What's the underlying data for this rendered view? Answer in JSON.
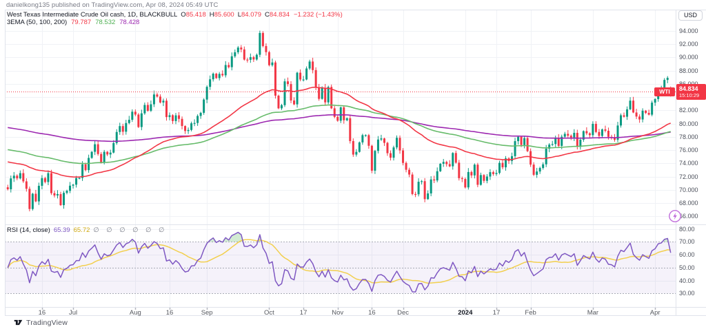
{
  "header": {
    "publish_line": "danielkong135 published on TradingView.com, Apr 08, 2024 05:49 UTC"
  },
  "footer": {
    "brand": "TradingView"
  },
  "icons": {
    "boost_icon": "lightning-bolt-in-circle",
    "brand_icon": "tradingview-logo-mark"
  },
  "colors": {
    "up": "#089981",
    "down": "#f23645",
    "ema50": "#f23645",
    "ema100": "#66bb6a",
    "ema200": "#9c27b0",
    "rsi_line": "#7e57c2",
    "rsi_ma": "#f2cf4d",
    "rsi_band_fill": "rgba(126,87,194,0.08)",
    "overbought_fill": "rgba(76,175,80,0.25)",
    "grid": "#f0f2f6",
    "dashed_level": "#a7aab4",
    "frame": "#e0e3eb",
    "last_price": "#f23645"
  },
  "main_legend": {
    "title": "West Texas Intermediate Crude Oil cash, 1D, BLACKBULL",
    "ohlc": {
      "o_label": "O",
      "o": "85.418",
      "h_label": "H",
      "h": "85.600",
      "l_label": "L",
      "l": "84.079",
      "c_label": "C",
      "c": "84.834",
      "change": "−1.232 (−1.43%)"
    },
    "ema_label": "3EMA (50, 100, 200)",
    "ema1": "79.787",
    "ema2": "78.532",
    "ema3": "78.428"
  },
  "rsi_legend": {
    "title": "RSI (14, close)",
    "value": "65.39",
    "ma_value": "65.72",
    "empties": "∅ ∅ ∅ ∅ ∅ ∅"
  },
  "price_scale": {
    "currency_button": "USD",
    "tag": "WTI",
    "last_price": "84.834",
    "countdown": "15:10:29"
  },
  "chart_data": {
    "type": "candlestick",
    "title": "West Texas Intermediate Crude Oil cash",
    "interval": "1D",
    "exchange": "BLACKBULL",
    "legend_last": {
      "o": 85.418,
      "h": 85.6,
      "l": 84.079,
      "c": 84.834,
      "change": -1.232,
      "change_pct": -1.43
    },
    "ylim": [
      64.8,
      97.2
    ],
    "price_axis_ticks": [
      94,
      92,
      90,
      88,
      86,
      84,
      82,
      80,
      78,
      76,
      74,
      72,
      70,
      68,
      66
    ],
    "closes": [
      70.1,
      71.74,
      72.15,
      71.74,
      72.53,
      71.29,
      70.17,
      67.12,
      69.42,
      68.27,
      70.62,
      71.78,
      71.19,
      72.53,
      69.51,
      69.16,
      69.37,
      67.7,
      69.56,
      69.86,
      70.64,
      70.79,
      71.79,
      71.8,
      73.86,
      72.99,
      74.83,
      75.75,
      76.89,
      75.42,
      74.15,
      75.75,
      75.35,
      75.63,
      77.07,
      78.74,
      79.63,
      78.78,
      80.09,
      80.58,
      81.8,
      81.37,
      79.49,
      81.55,
      82.82,
      81.94,
      82.92,
      84.4,
      84.08,
      83.19,
      83.46,
      80.99,
      81.27,
      80.39,
      81.25,
      80.72,
      79.64,
      78.89,
      79.05,
      80.05,
      80.1,
      81.16,
      81.63,
      83.63,
      85.55,
      86.69,
      87.54,
      86.87,
      87.51,
      87.29,
      88.84,
      88.52,
      90.16,
      90.77,
      91.48,
      91.2,
      89.66,
      89.63,
      90.03,
      89.68,
      90.39,
      93.68,
      91.71,
      90.79,
      88.82,
      89.23,
      84.22,
      82.31,
      82.79,
      86.38,
      85.97,
      83.49,
      82.91,
      87.69,
      86.66,
      86.66,
      88.32,
      89.37,
      88.08,
      85.49,
      83.74,
      85.39,
      83.21,
      85.54,
      82.31,
      81.02,
      80.44,
      82.46,
      80.51,
      80.82,
      77.37,
      75.33,
      75.74,
      77.17,
      78.26,
      78.26,
      76.66,
      72.9,
      75.89,
      77.6,
      77.77,
      77.1,
      75.54,
      74.86,
      76.41,
      77.86,
      75.96,
      74.07,
      73.04,
      72.32,
      69.38,
      69.34,
      71.23,
      71.32,
      68.61,
      69.47,
      71.58,
      71.43,
      72.82,
      73.94,
      74.22,
      73.89,
      73.56,
      75.57,
      74.11,
      71.77,
      71.65,
      70.38,
      72.7,
      72.19,
      73.81,
      70.77,
      72.24,
      71.37,
      72.02,
      72.68,
      72.4,
      72.56,
      74.08,
      73.41,
      74.76,
      74.37,
      75.09,
      77.36,
      78.01,
      76.78,
      77.82,
      75.85,
      73.82,
      72.28,
      72.78,
      73.31,
      73.86,
      76.22,
      76.84,
      76.92,
      77.87,
      76.64,
      78.03,
      78.46,
      78.18,
      77.91,
      78.61,
      76.49,
      77.58,
      78.87,
      78.54,
      78.26,
      79.97,
      78.74,
      78.15,
      79.13,
      78.93,
      78.01,
      77.93,
      77.56,
      79.72,
      81.26,
      81.04,
      82.16,
      83.47,
      81.68,
      81.07,
      80.63,
      81.95,
      81.62,
      81.35,
      83.17,
      83.71,
      85.15,
      85.43,
      86.59,
      86.91,
      84.83
    ],
    "x_ticks": [
      {
        "label": "16",
        "i": 11,
        "bold": false
      },
      {
        "label": "Jul",
        "i": 21,
        "bold": false
      },
      {
        "label": "Aug",
        "i": 41,
        "bold": false
      },
      {
        "label": "16",
        "i": 52,
        "bold": false
      },
      {
        "label": "Sep",
        "i": 64,
        "bold": false
      },
      {
        "label": "Oct",
        "i": 84,
        "bold": false
      },
      {
        "label": "17",
        "i": 95,
        "bold": false
      },
      {
        "label": "Nov",
        "i": 106,
        "bold": false
      },
      {
        "label": "16",
        "i": 117,
        "bold": false
      },
      {
        "label": "Dec",
        "i": 127,
        "bold": false
      },
      {
        "label": "2024",
        "i": 147,
        "bold": true
      },
      {
        "label": "17",
        "i": 157,
        "bold": false
      },
      {
        "label": "Feb",
        "i": 168,
        "bold": false
      },
      {
        "label": "Mar",
        "i": 188,
        "bold": false
      },
      {
        "label": "Apr",
        "i": 208,
        "bold": false
      }
    ],
    "emas": {
      "periods": [
        50,
        100,
        200
      ],
      "seeds": [
        74.4,
        76.2,
        79.5
      ],
      "last_values": [
        79.787,
        78.532,
        78.428
      ]
    },
    "rsi": {
      "period": 14,
      "ma_period": 14,
      "last": 65.39,
      "ma_last": 65.72,
      "levels_dashed": [
        30,
        50,
        70
      ],
      "axis_ticks": [
        80,
        70,
        60,
        50,
        40,
        30
      ],
      "ylim": [
        19.5,
        83.5
      ]
    },
    "last_price_line": 84.834
  }
}
